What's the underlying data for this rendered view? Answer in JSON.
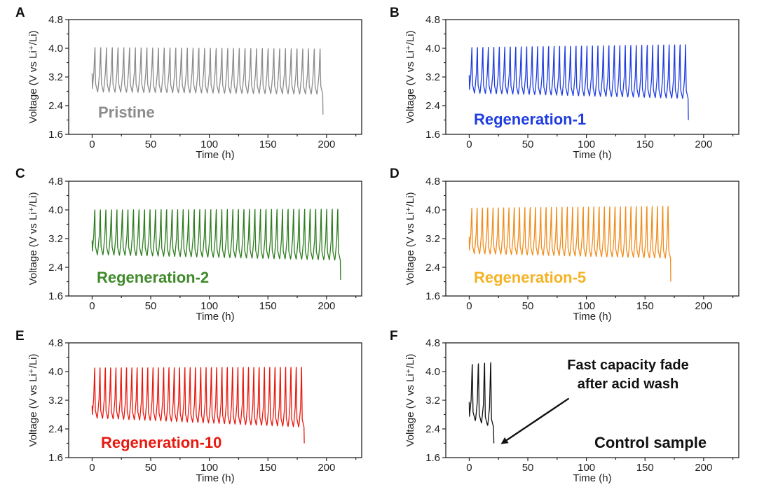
{
  "chart_data": [
    {
      "panel": "A",
      "type": "line",
      "sample_label": "Pristine",
      "series_color": "#8c8c8c",
      "label_color": "#8c8c8c",
      "xlabel": "Time (h)",
      "ylabel": "Voltage (V vs Li⁺/Li)",
      "xlim": [
        -20,
        230
      ],
      "ylim": [
        1.6,
        4.8
      ],
      "xticks": [
        0,
        50,
        100,
        150,
        200
      ],
      "yticks": [
        1.6,
        2.4,
        3.2,
        4.0,
        4.8
      ],
      "xtick_labels": [
        "0",
        "50",
        "100",
        "150",
        "200"
      ],
      "ytick_labels": [
        "1.6",
        "2.4",
        "3.2",
        "4.0",
        "4.8"
      ],
      "cycles": 40,
      "end_time_h": 197,
      "start_voltage": 3.3,
      "charge_top_start": 4.02,
      "charge_top_end": 3.98,
      "discharge_bottom_start": 2.78,
      "discharge_bottom_end": 2.72,
      "final_voltage": 2.15,
      "grid": false,
      "annotation": ""
    },
    {
      "panel": "B",
      "type": "line",
      "sample_label": "Regeneration-1",
      "series_color": "#1f3de0",
      "label_color": "#1f3de0",
      "xlabel": "Time (h)",
      "ylabel": "Voltage (V vs Li⁺/Li)",
      "xlim": [
        -20,
        230
      ],
      "ylim": [
        1.6,
        4.8
      ],
      "xticks": [
        0,
        50,
        100,
        150,
        200
      ],
      "yticks": [
        1.6,
        2.4,
        3.2,
        4.0,
        4.8
      ],
      "xtick_labels": [
        "0",
        "50",
        "100",
        "150",
        "200"
      ],
      "ytick_labels": [
        "1.6",
        "2.4",
        "3.2",
        "4.0",
        "4.8"
      ],
      "cycles": 40,
      "end_time_h": 187,
      "start_voltage": 3.25,
      "charge_top_start": 4.02,
      "charge_top_end": 4.1,
      "discharge_bottom_start": 2.75,
      "discharge_bottom_end": 2.6,
      "final_voltage": 2.0,
      "grid": false,
      "annotation": ""
    },
    {
      "panel": "C",
      "type": "line",
      "sample_label": "Regeneration-2",
      "series_color": "#2e7d1f",
      "label_color": "#3f8a2a",
      "xlabel": "Time (h)",
      "ylabel": "Voltage (V vs Li⁺/Li)",
      "xlim": [
        -20,
        230
      ],
      "ylim": [
        1.6,
        4.8
      ],
      "xticks": [
        0,
        50,
        100,
        150,
        200
      ],
      "yticks": [
        1.6,
        2.4,
        3.2,
        4.0,
        4.8
      ],
      "xtick_labels": [
        "0",
        "50",
        "100",
        "150",
        "200"
      ],
      "ytick_labels": [
        "1.6",
        "2.4",
        "3.2",
        "4.0",
        "4.8"
      ],
      "cycles": 45,
      "end_time_h": 212,
      "start_voltage": 3.15,
      "charge_top_start": 4.0,
      "charge_top_end": 4.02,
      "discharge_bottom_start": 2.75,
      "discharge_bottom_end": 2.6,
      "final_voltage": 2.05,
      "grid": false,
      "annotation": ""
    },
    {
      "panel": "D",
      "type": "line",
      "sample_label": "Regeneration-5",
      "series_color": "#f08c1c",
      "label_color": "#f5b324",
      "xlabel": "Time (h)",
      "ylabel": "Voltage (V vs Li⁺/Li)",
      "xlim": [
        -20,
        230
      ],
      "ylim": [
        1.6,
        4.8
      ],
      "xticks": [
        0,
        50,
        100,
        150,
        200
      ],
      "yticks": [
        1.6,
        2.4,
        3.2,
        4.0,
        4.8
      ],
      "xtick_labels": [
        "0",
        "50",
        "100",
        "150",
        "200"
      ],
      "ytick_labels": [
        "1.6",
        "2.4",
        "3.2",
        "4.0",
        "4.8"
      ],
      "cycles": 38,
      "end_time_h": 172,
      "start_voltage": 3.25,
      "charge_top_start": 4.05,
      "charge_top_end": 4.1,
      "discharge_bottom_start": 2.78,
      "discharge_bottom_end": 2.65,
      "final_voltage": 2.0,
      "grid": false,
      "annotation": ""
    },
    {
      "panel": "E",
      "type": "line",
      "sample_label": "Regeneration-10",
      "series_color": "#e8190f",
      "label_color": "#e8190f",
      "xlabel": "Time (h)",
      "ylabel": "Voltage (V vs Li⁺/Li)",
      "xlim": [
        -20,
        230
      ],
      "ylim": [
        1.6,
        4.8
      ],
      "xticks": [
        0,
        50,
        100,
        150,
        200
      ],
      "yticks": [
        1.6,
        2.4,
        3.2,
        4.0,
        4.8
      ],
      "xtick_labels": [
        "0",
        "50",
        "100",
        "150",
        "200"
      ],
      "ytick_labels": [
        "1.6",
        "2.4",
        "3.2",
        "4.0",
        "4.8"
      ],
      "cycles": 40,
      "end_time_h": 181,
      "start_voltage": 3.05,
      "charge_top_start": 4.1,
      "charge_top_end": 4.12,
      "discharge_bottom_start": 2.7,
      "discharge_bottom_end": 2.45,
      "final_voltage": 2.0,
      "grid": false,
      "annotation": ""
    },
    {
      "panel": "F",
      "type": "line",
      "sample_label": "Control sample",
      "series_color": "#111111",
      "label_color": "#111111",
      "xlabel": "Time (h)",
      "ylabel": "Voltage (V vs Li⁺/Li)",
      "xlim": [
        -20,
        230
      ],
      "ylim": [
        1.6,
        4.8
      ],
      "xticks": [
        0,
        50,
        100,
        150,
        200
      ],
      "yticks": [
        1.6,
        2.4,
        3.2,
        4.0,
        4.8
      ],
      "xtick_labels": [
        "0",
        "50",
        "100",
        "150",
        "200"
      ],
      "ytick_labels": [
        "1.6",
        "2.4",
        "3.2",
        "4.0",
        "4.8"
      ],
      "cycles": 4,
      "end_time_h": 21,
      "start_voltage": 3.15,
      "charge_top_start": 4.2,
      "charge_top_end": 4.25,
      "discharge_bottom_start": 2.65,
      "discharge_bottom_end": 2.45,
      "final_voltage": 2.0,
      "grid": false,
      "annotation": "Fast capacity fade after acid wash",
      "annotation_lines": [
        "Fast capacity fade",
        "after acid wash"
      ],
      "arrow_from": [
        85,
        3.25
      ],
      "arrow_to": [
        28,
        2.0
      ]
    }
  ]
}
